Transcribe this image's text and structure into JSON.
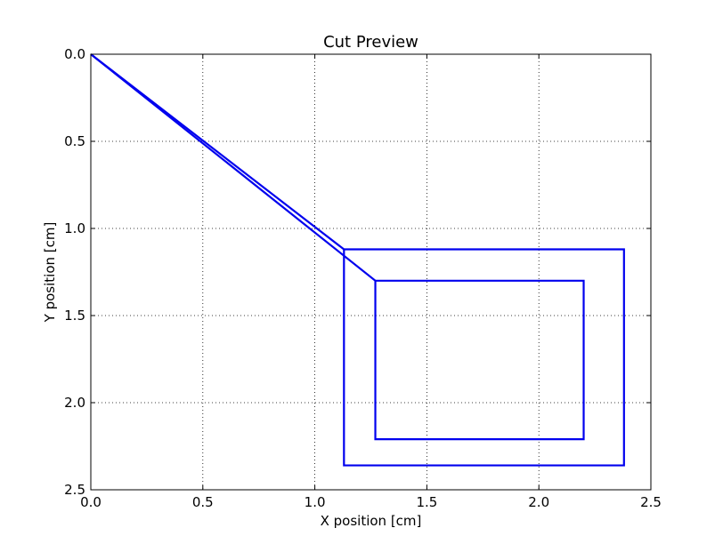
{
  "chart_data": {
    "type": "line",
    "title": "Cut Preview",
    "xlabel": "X position [cm]",
    "ylabel": "Y position [cm]",
    "xlim": [
      0.0,
      2.5
    ],
    "ylim": [
      2.5,
      0.0
    ],
    "y_inverted": true,
    "grid": true,
    "x_ticks": [
      "0.0",
      "0.5",
      "1.0",
      "1.5",
      "2.0",
      "2.5"
    ],
    "y_ticks": [
      "0.0",
      "0.5",
      "1.0",
      "1.5",
      "2.0",
      "2.5"
    ],
    "series_color": "#0000ee",
    "series": [
      {
        "x": [
          0.0,
          1.13,
          2.38,
          2.38,
          1.13,
          1.13,
          0.0
        ],
        "y": [
          0.0,
          1.12,
          1.12,
          2.36,
          2.36,
          1.12,
          0.0
        ]
      },
      {
        "x": [
          0.0,
          1.27,
          2.2,
          2.2,
          1.27,
          1.27,
          0.0
        ],
        "y": [
          0.0,
          1.3,
          1.3,
          2.21,
          2.21,
          1.3,
          0.0
        ]
      }
    ]
  }
}
